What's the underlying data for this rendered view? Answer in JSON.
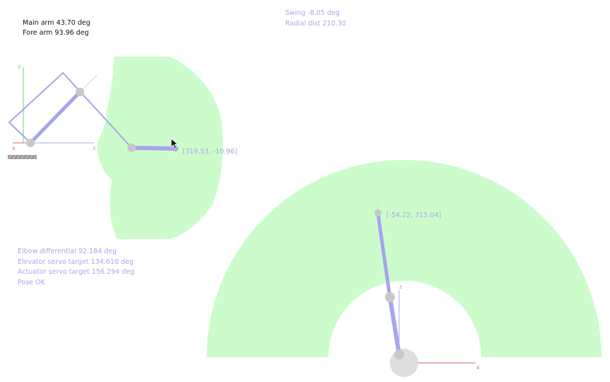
{
  "colors": {
    "workspace": "#ccfccc",
    "arm": "#a8a4ec",
    "joint": "#c8c8c8",
    "axis_x": "#e06060",
    "axis_y": "#70d070",
    "axis_z": "#a8a4ec",
    "soft_text": "#a9a6e8",
    "dark_text": "#111111"
  },
  "angles": {
    "main_arm": "Main arm 43.70 deg",
    "fore_arm": "Fore arm 93.96 deg"
  },
  "swing_panel": {
    "swing": "Swing -8.05 deg",
    "radial_dist": "Radial dist 210.30"
  },
  "side_view": {
    "axis_y": "y",
    "axis_x": "x",
    "axis_z": "z",
    "target_coord": "[319.53, -10.96]"
  },
  "top_view": {
    "axis_z": "z",
    "axis_x": "x",
    "target_coord": "[-54.22, 315.04]"
  },
  "status": {
    "elbow_differential": "Elbow differential 92.184 deg",
    "elevator_servo": "Elevator servo target 134.610 deg",
    "actuator_servo": "Actuator servo target 156.294 deg",
    "pose": "Pose OK"
  },
  "icons": {
    "cursor": "mouse-pointer-icon",
    "base_marker": "hatched-base-icon"
  }
}
